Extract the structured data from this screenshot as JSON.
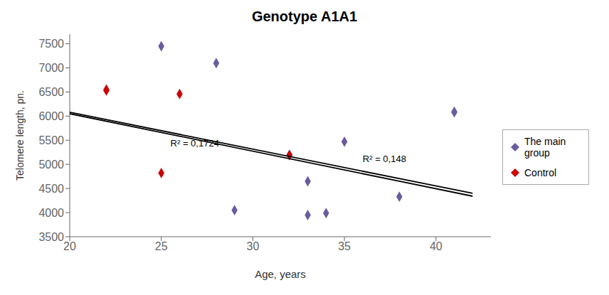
{
  "chart_data": {
    "type": "scatter",
    "title": "Genotype A1A1",
    "xlabel": "Age, years",
    "ylabel": "Telomere  length, pn.",
    "xlim": [
      20,
      43
    ],
    "xticks": [
      20,
      25,
      30,
      35,
      40
    ],
    "ylim": [
      3500,
      7700
    ],
    "yticks": [
      3500,
      4000,
      4500,
      5000,
      5500,
      6000,
      6500,
      7000,
      7500
    ],
    "grid": false,
    "legend": "right",
    "series": [
      {
        "name": "The main\ngroup",
        "type": "scatter",
        "marker": "diamond",
        "color": "#6b5b9e",
        "x": [
          25,
          28,
          29,
          32,
          33,
          33,
          34,
          35,
          38,
          41,
          41
        ],
        "values": [
          7450,
          7100,
          4050,
          5200,
          4650,
          3950,
          3990,
          5470,
          4330,
          6080,
          6090
        ]
      },
      {
        "name": "Control",
        "type": "scatter",
        "marker": "diamond",
        "color": "#cc0000",
        "x": [
          22,
          22,
          25,
          26,
          32
        ],
        "values": [
          6550,
          6530,
          4820,
          6460,
          5190
        ]
      },
      {
        "type": "line",
        "color": "#000000",
        "x": [
          20,
          42
        ],
        "values": [
          6080,
          4400
        ]
      },
      {
        "type": "line",
        "color": "#000000",
        "x": [
          20,
          42
        ],
        "values": [
          6050,
          4340
        ]
      }
    ],
    "annotations": [
      {
        "text": "R² = 0,1724",
        "x": 25.5,
        "y": 5370
      },
      {
        "text": "R² = 0,148",
        "x": 36.0,
        "y": 5050
      }
    ]
  }
}
